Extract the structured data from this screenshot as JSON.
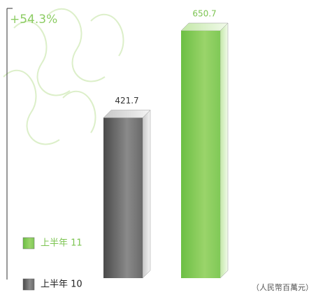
{
  "chart_data": {
    "type": "bar3d",
    "annotation": "+54.3%",
    "unit_label": "（人民幣百萬元）",
    "series": [
      {
        "name": "上半年 10",
        "color": "#6b6b6b",
        "values": [
          421.7
        ]
      },
      {
        "name": "上半年 11",
        "color": "#7cc451",
        "values": [
          650.7
        ]
      }
    ]
  }
}
